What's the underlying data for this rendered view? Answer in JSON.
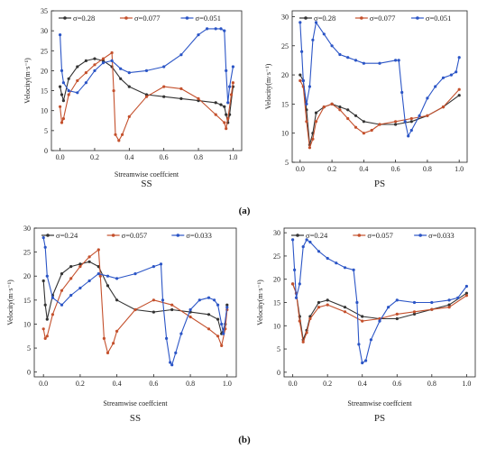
{
  "figure": {
    "label_a": "(a)",
    "label_b": "(b)"
  },
  "colors": {
    "black": "#333333",
    "red": "#c4502c",
    "blue": "#2b55c6"
  },
  "chart_data": [
    {
      "type": "line",
      "caption": "SS",
      "xlabel": "Streamwise coeffcient",
      "ylabel": "Velocity(m·s⁻¹)",
      "xlim": [
        -0.05,
        1.05
      ],
      "ylim": [
        0,
        35
      ],
      "xticks": [
        0.0,
        0.2,
        0.4,
        0.6,
        0.8,
        1.0
      ],
      "yticks": [
        0,
        5,
        10,
        15,
        20,
        25,
        30,
        35
      ],
      "legend": "top",
      "series": [
        {
          "name": "σ=0.28",
          "color": "#333333",
          "x": [
            0,
            0.01,
            0.02,
            0.05,
            0.1,
            0.15,
            0.2,
            0.25,
            0.3,
            0.35,
            0.4,
            0.5,
            0.6,
            0.7,
            0.8,
            0.9,
            0.93,
            0.95,
            0.96,
            0.97,
            0.98,
            1.0
          ],
          "y": [
            16,
            14,
            12.5,
            18,
            21,
            22.5,
            23,
            22.5,
            21,
            18,
            16,
            14,
            13.5,
            13,
            12.5,
            12,
            11.5,
            11,
            9,
            7,
            9,
            16
          ]
        },
        {
          "name": "σ=0.077",
          "color": "#c4502c",
          "x": [
            0,
            0.01,
            0.02,
            0.05,
            0.1,
            0.15,
            0.2,
            0.25,
            0.3,
            0.31,
            0.32,
            0.34,
            0.36,
            0.4,
            0.5,
            0.6,
            0.7,
            0.8,
            0.9,
            0.95,
            0.96,
            0.97,
            0.99,
            1.0
          ],
          "y": [
            11,
            7,
            8,
            14,
            17.5,
            19.5,
            21.5,
            23,
            24.5,
            15,
            4,
            2.5,
            4,
            8.5,
            13.5,
            16,
            15.5,
            13,
            9,
            7,
            5.5,
            8,
            14,
            17
          ]
        },
        {
          "name": "σ=0.051",
          "color": "#2b55c6",
          "x": [
            0,
            0.01,
            0.02,
            0.05,
            0.1,
            0.15,
            0.2,
            0.25,
            0.3,
            0.35,
            0.4,
            0.5,
            0.6,
            0.7,
            0.8,
            0.85,
            0.9,
            0.93,
            0.95,
            0.96,
            0.97,
            0.98,
            1.0
          ],
          "y": [
            29,
            20,
            17,
            15,
            14.5,
            17,
            20,
            22,
            22.5,
            20.5,
            19.5,
            20,
            21,
            24,
            29,
            30.5,
            30.5,
            30.5,
            30,
            20,
            12,
            16,
            21
          ]
        }
      ]
    },
    {
      "type": "line",
      "caption": "PS",
      "xlabel": "",
      "ylabel": "Velocity(m·s⁻¹)",
      "xlim": [
        -0.05,
        1.05
      ],
      "ylim": [
        5,
        31
      ],
      "xticks": [
        0.0,
        0.2,
        0.4,
        0.6,
        0.8,
        1.0
      ],
      "yticks": [
        5,
        10,
        15,
        20,
        25,
        30
      ],
      "legend": "top",
      "series": [
        {
          "name": "σ=0.28",
          "color": "#333333",
          "x": [
            0,
            0.02,
            0.04,
            0.06,
            0.08,
            0.1,
            0.15,
            0.2,
            0.25,
            0.3,
            0.35,
            0.4,
            0.5,
            0.6,
            0.7,
            0.8,
            0.9,
            1.0
          ],
          "y": [
            20,
            19,
            14,
            8,
            10,
            13.5,
            14.5,
            15,
            14.5,
            14,
            13,
            12,
            11.5,
            11.5,
            12,
            13,
            14.5,
            16.5
          ]
        },
        {
          "name": "σ=0.077",
          "color": "#c4502c",
          "x": [
            0,
            0.02,
            0.04,
            0.06,
            0.08,
            0.1,
            0.15,
            0.2,
            0.25,
            0.3,
            0.35,
            0.4,
            0.45,
            0.5,
            0.6,
            0.7,
            0.8,
            0.9,
            1.0
          ],
          "y": [
            19,
            18,
            12,
            7.5,
            9,
            12,
            14.5,
            15,
            14,
            12.5,
            11,
            10,
            10.5,
            11.5,
            12,
            12.5,
            13,
            14.5,
            17.5
          ]
        },
        {
          "name": "σ=0.051",
          "color": "#2b55c6",
          "x": [
            0,
            0.01,
            0.02,
            0.04,
            0.06,
            0.08,
            0.1,
            0.15,
            0.2,
            0.25,
            0.3,
            0.35,
            0.4,
            0.5,
            0.6,
            0.62,
            0.64,
            0.66,
            0.68,
            0.7,
            0.75,
            0.8,
            0.85,
            0.9,
            0.95,
            0.98,
            1.0
          ],
          "y": [
            29,
            24,
            19,
            15,
            18,
            26,
            29,
            27,
            25,
            23.5,
            23,
            22.5,
            22,
            22,
            22.5,
            22.5,
            17,
            12,
            9.5,
            10.5,
            13,
            16,
            18,
            19.5,
            20,
            20.5,
            23
          ]
        }
      ]
    },
    {
      "type": "line",
      "caption": "SS",
      "xlabel": "Streamwise coeffcient",
      "ylabel": "Velocity(m·s⁻¹)",
      "xlim": [
        -0.05,
        1.05
      ],
      "ylim": [
        -1,
        30
      ],
      "xticks": [
        0.0,
        0.2,
        0.4,
        0.6,
        0.8,
        1.0
      ],
      "yticks": [
        0,
        5,
        10,
        15,
        20,
        25,
        30
      ],
      "legend": "top",
      "series": [
        {
          "name": "σ=0.24",
          "color": "#333333",
          "x": [
            0,
            0.01,
            0.02,
            0.05,
            0.1,
            0.15,
            0.2,
            0.25,
            0.3,
            0.35,
            0.4,
            0.5,
            0.6,
            0.7,
            0.8,
            0.9,
            0.95,
            0.97,
            0.99,
            1.0
          ],
          "y": [
            19,
            14,
            11,
            16,
            20.5,
            22,
            22.5,
            23,
            22,
            18,
            15,
            13,
            12.5,
            13,
            12.5,
            12,
            11,
            8,
            10,
            14
          ]
        },
        {
          "name": "σ=0.057",
          "color": "#c4502c",
          "x": [
            0,
            0.01,
            0.02,
            0.05,
            0.1,
            0.15,
            0.2,
            0.25,
            0.3,
            0.31,
            0.33,
            0.35,
            0.38,
            0.4,
            0.5,
            0.6,
            0.7,
            0.8,
            0.9,
            0.95,
            0.97,
            0.99,
            1.0
          ],
          "y": [
            9,
            7,
            7.5,
            12,
            17,
            19.5,
            22,
            24,
            25.5,
            20,
            7,
            4,
            6,
            8.5,
            13,
            15,
            14,
            11.5,
            9,
            7.5,
            5.5,
            9,
            13
          ]
        },
        {
          "name": "σ=0.033",
          "color": "#2b55c6",
          "x": [
            0,
            0.01,
            0.02,
            0.05,
            0.1,
            0.15,
            0.2,
            0.25,
            0.3,
            0.35,
            0.4,
            0.5,
            0.6,
            0.64,
            0.65,
            0.67,
            0.69,
            0.7,
            0.72,
            0.75,
            0.8,
            0.85,
            0.9,
            0.93,
            0.95,
            0.97,
            0.98,
            1.0
          ],
          "y": [
            28,
            26,
            20,
            15.5,
            14,
            16,
            17.5,
            19,
            20.5,
            20,
            19.5,
            20.5,
            22,
            22.5,
            15,
            7,
            2,
            1.5,
            4,
            8,
            13,
            15,
            15.5,
            15,
            14,
            10,
            8,
            13.5
          ]
        }
      ]
    },
    {
      "type": "line",
      "caption": "PS",
      "xlabel": "Streamwise coeffcient",
      "ylabel": "Velocity(m·s⁻¹)",
      "xlim": [
        -0.05,
        1.05
      ],
      "ylim": [
        -1,
        31
      ],
      "xticks": [
        0.0,
        0.2,
        0.4,
        0.6,
        0.8,
        1.0
      ],
      "yticks": [
        0,
        5,
        10,
        15,
        20,
        25,
        30
      ],
      "legend": "top",
      "series": [
        {
          "name": "σ=0.24",
          "color": "#333333",
          "x": [
            0,
            0.02,
            0.04,
            0.06,
            0.08,
            0.1,
            0.15,
            0.2,
            0.3,
            0.4,
            0.5,
            0.6,
            0.7,
            0.8,
            0.9,
            1.0
          ],
          "y": [
            19,
            17,
            12,
            7,
            9,
            12,
            15,
            15.5,
            14,
            12,
            11.5,
            11.5,
            12.5,
            13.5,
            14.5,
            17
          ]
        },
        {
          "name": "σ=0.057",
          "color": "#c4502c",
          "x": [
            0,
            0.02,
            0.04,
            0.06,
            0.08,
            0.1,
            0.15,
            0.2,
            0.3,
            0.4,
            0.5,
            0.6,
            0.7,
            0.8,
            0.9,
            1.0
          ],
          "y": [
            19,
            17,
            11,
            6.5,
            8.5,
            11.5,
            14,
            14.5,
            13,
            11,
            11.5,
            12.5,
            13,
            13.5,
            14,
            16.5
          ]
        },
        {
          "name": "σ=0.033",
          "color": "#2b55c6",
          "x": [
            0,
            0.01,
            0.02,
            0.04,
            0.06,
            0.08,
            0.1,
            0.15,
            0.2,
            0.25,
            0.3,
            0.35,
            0.37,
            0.38,
            0.4,
            0.42,
            0.45,
            0.5,
            0.55,
            0.6,
            0.7,
            0.8,
            0.9,
            0.95,
            1.0
          ],
          "y": [
            28.5,
            22,
            16,
            19,
            27,
            28.5,
            28,
            26,
            24.5,
            23.5,
            22.5,
            22,
            15,
            6,
            2,
            2.5,
            7,
            11,
            14,
            15.5,
            15,
            15,
            15.5,
            16,
            18.5
          ]
        }
      ]
    }
  ]
}
